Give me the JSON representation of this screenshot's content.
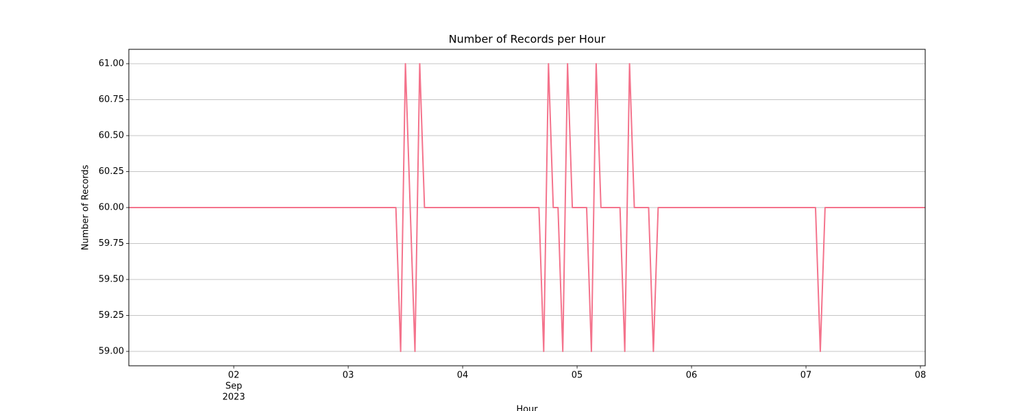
{
  "chart_data": {
    "type": "line",
    "title": "Number of Records per Hour",
    "xlabel": "Hour",
    "ylabel": "Number of Records",
    "x": [
      "2023-09-01 02:00",
      "2023-09-01 03:00",
      "2023-09-01 04:00",
      "2023-09-01 05:00",
      "2023-09-01 06:00",
      "2023-09-01 07:00",
      "2023-09-01 08:00",
      "2023-09-01 09:00",
      "2023-09-01 10:00",
      "2023-09-01 11:00",
      "2023-09-01 12:00",
      "2023-09-01 13:00",
      "2023-09-01 14:00",
      "2023-09-01 15:00",
      "2023-09-01 16:00",
      "2023-09-01 17:00",
      "2023-09-01 18:00",
      "2023-09-01 19:00",
      "2023-09-01 20:00",
      "2023-09-01 21:00",
      "2023-09-01 22:00",
      "2023-09-01 23:00",
      "2023-09-02 00:00",
      "2023-09-02 01:00",
      "2023-09-02 02:00",
      "2023-09-02 03:00",
      "2023-09-02 04:00",
      "2023-09-02 05:00",
      "2023-09-02 06:00",
      "2023-09-02 07:00",
      "2023-09-02 08:00",
      "2023-09-02 09:00",
      "2023-09-02 10:00",
      "2023-09-02 11:00",
      "2023-09-02 12:00",
      "2023-09-02 13:00",
      "2023-09-02 14:00",
      "2023-09-02 15:00",
      "2023-09-02 16:00",
      "2023-09-02 17:00",
      "2023-09-02 18:00",
      "2023-09-02 19:00",
      "2023-09-02 20:00",
      "2023-09-02 21:00",
      "2023-09-02 22:00",
      "2023-09-02 23:00",
      "2023-09-03 00:00",
      "2023-09-03 01:00",
      "2023-09-03 02:00",
      "2023-09-03 03:00",
      "2023-09-03 04:00",
      "2023-09-03 05:00",
      "2023-09-03 06:00",
      "2023-09-03 07:00",
      "2023-09-03 08:00",
      "2023-09-03 09:00",
      "2023-09-03 10:00",
      "2023-09-03 11:00",
      "2023-09-03 12:00",
      "2023-09-03 13:00",
      "2023-09-03 14:00",
      "2023-09-03 15:00",
      "2023-09-03 16:00",
      "2023-09-03 17:00",
      "2023-09-03 18:00",
      "2023-09-03 19:00",
      "2023-09-03 20:00",
      "2023-09-03 21:00",
      "2023-09-03 22:00",
      "2023-09-03 23:00",
      "2023-09-04 00:00",
      "2023-09-04 01:00",
      "2023-09-04 02:00",
      "2023-09-04 03:00",
      "2023-09-04 04:00",
      "2023-09-04 05:00",
      "2023-09-04 06:00",
      "2023-09-04 07:00",
      "2023-09-04 08:00",
      "2023-09-04 09:00",
      "2023-09-04 10:00",
      "2023-09-04 11:00",
      "2023-09-04 12:00",
      "2023-09-04 13:00",
      "2023-09-04 14:00",
      "2023-09-04 15:00",
      "2023-09-04 16:00",
      "2023-09-04 17:00",
      "2023-09-04 18:00",
      "2023-09-04 19:00",
      "2023-09-04 20:00",
      "2023-09-04 21:00",
      "2023-09-04 22:00",
      "2023-09-04 23:00",
      "2023-09-05 00:00",
      "2023-09-05 01:00",
      "2023-09-05 02:00",
      "2023-09-05 03:00",
      "2023-09-05 04:00",
      "2023-09-05 05:00",
      "2023-09-05 06:00",
      "2023-09-05 07:00",
      "2023-09-05 08:00",
      "2023-09-05 09:00",
      "2023-09-05 10:00",
      "2023-09-05 11:00",
      "2023-09-05 12:00",
      "2023-09-05 13:00",
      "2023-09-05 14:00",
      "2023-09-05 15:00",
      "2023-09-05 16:00",
      "2023-09-05 17:00",
      "2023-09-05 18:00",
      "2023-09-05 19:00",
      "2023-09-05 20:00",
      "2023-09-05 21:00",
      "2023-09-05 22:00",
      "2023-09-05 23:00",
      "2023-09-06 00:00",
      "2023-09-06 01:00",
      "2023-09-06 02:00",
      "2023-09-06 03:00",
      "2023-09-06 04:00",
      "2023-09-06 05:00",
      "2023-09-06 06:00",
      "2023-09-06 07:00",
      "2023-09-06 08:00",
      "2023-09-06 09:00",
      "2023-09-06 10:00",
      "2023-09-06 11:00",
      "2023-09-06 12:00",
      "2023-09-06 13:00",
      "2023-09-06 14:00",
      "2023-09-06 15:00",
      "2023-09-06 16:00",
      "2023-09-06 17:00",
      "2023-09-06 18:00",
      "2023-09-06 19:00",
      "2023-09-06 20:00",
      "2023-09-06 21:00",
      "2023-09-06 22:00",
      "2023-09-06 23:00",
      "2023-09-07 00:00",
      "2023-09-07 01:00",
      "2023-09-07 02:00",
      "2023-09-07 03:00",
      "2023-09-07 04:00",
      "2023-09-07 05:00",
      "2023-09-07 06:00",
      "2023-09-07 07:00",
      "2023-09-07 08:00",
      "2023-09-07 09:00",
      "2023-09-07 10:00",
      "2023-09-07 11:00",
      "2023-09-07 12:00",
      "2023-09-07 13:00",
      "2023-09-07 14:00",
      "2023-09-07 15:00",
      "2023-09-07 16:00",
      "2023-09-07 17:00",
      "2023-09-07 18:00",
      "2023-09-07 19:00",
      "2023-09-07 20:00",
      "2023-09-07 21:00",
      "2023-09-07 22:00",
      "2023-09-07 23:00",
      "2023-09-08 00:00",
      "2023-09-08 01:00"
    ],
    "values": [
      60,
      60,
      60,
      60,
      60,
      60,
      60,
      60,
      60,
      60,
      60,
      60,
      60,
      60,
      60,
      60,
      60,
      60,
      60,
      60,
      60,
      60,
      60,
      60,
      60,
      60,
      60,
      60,
      60,
      60,
      60,
      60,
      60,
      60,
      60,
      60,
      60,
      60,
      60,
      60,
      60,
      60,
      60,
      60,
      60,
      60,
      60,
      60,
      60,
      60,
      60,
      60,
      60,
      60,
      60,
      60,
      60,
      59,
      61,
      60,
      59,
      61,
      60,
      60,
      60,
      60,
      60,
      60,
      60,
      60,
      60,
      60,
      60,
      60,
      60,
      60,
      60,
      60,
      60,
      60,
      60,
      60,
      60,
      60,
      60,
      60,
      60,
      59,
      61,
      60,
      60,
      59,
      61,
      60,
      60,
      60,
      60,
      59,
      61,
      60,
      60,
      60,
      60,
      60,
      59,
      61,
      60,
      60,
      60,
      60,
      59,
      60,
      60,
      60,
      60,
      60,
      60,
      60,
      60,
      60,
      60,
      60,
      60,
      60,
      60,
      60,
      60,
      60,
      60,
      60,
      60,
      60,
      60,
      60,
      60,
      60,
      60,
      60,
      60,
      60,
      60,
      60,
      60,
      60,
      60,
      59,
      60,
      60,
      60,
      60,
      60,
      60,
      60,
      60,
      60,
      60,
      60,
      60,
      60,
      60,
      60,
      60,
      60,
      60,
      60,
      60,
      60,
      60
    ],
    "color": "#f4738c",
    "xlim": [
      "2023-09-01 02:00",
      "2023-09-08 01:00"
    ],
    "xticks": [
      {
        "value": "2023-09-02 00:00",
        "label": "02"
      },
      {
        "value": "2023-09-03 00:00",
        "label": "03"
      },
      {
        "value": "2023-09-04 00:00",
        "label": "04"
      },
      {
        "value": "2023-09-05 00:00",
        "label": "05"
      },
      {
        "value": "2023-09-06 00:00",
        "label": "06"
      },
      {
        "value": "2023-09-07 00:00",
        "label": "07"
      },
      {
        "value": "2023-09-08 00:00",
        "label": "08"
      }
    ],
    "x_tick_sublabels": [
      "Sep",
      "2023"
    ],
    "ylim": [
      58.9,
      61.1
    ],
    "yticks": [
      {
        "value": 59,
        "label": "59.00"
      },
      {
        "value": 59.25,
        "label": "59.25"
      },
      {
        "value": 59.5,
        "label": "59.50"
      },
      {
        "value": 59.75,
        "label": "59.75"
      },
      {
        "value": 60,
        "label": "60.00"
      },
      {
        "value": 60.25,
        "label": "60.25"
      },
      {
        "value": 60.5,
        "label": "60.50"
      },
      {
        "value": 60.75,
        "label": "60.75"
      },
      {
        "value": 61,
        "label": "61.00"
      }
    ],
    "grid": "y"
  }
}
